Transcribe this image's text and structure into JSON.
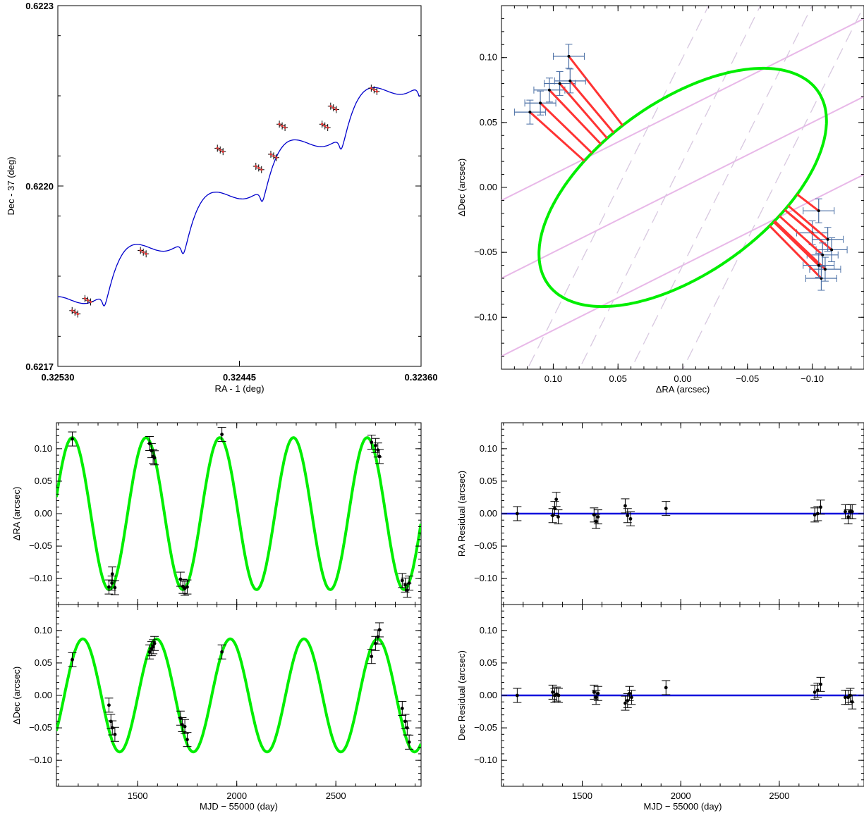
{
  "chart_data": [
    {
      "id": "sky-path",
      "type": "line",
      "xlabel": "RA - 1 (deg)",
      "ylabel": "Dec - 37 (deg)",
      "xlim": [
        0.3253,
        0.3236
      ],
      "ylim": [
        0.6217,
        0.6223
      ],
      "x_ticks": [
        "0.32530",
        "0.32445",
        "0.32360"
      ],
      "y_ticks": [
        "0.6217",
        "0.6220",
        "0.6223"
      ],
      "series": [
        {
          "style": "curve",
          "color": "#0000cc",
          "x": [
            0.3253,
            0.32521,
            0.32512,
            0.325,
            0.3249,
            0.32482,
            0.3247,
            0.32455,
            0.3244,
            0.32425,
            0.3241,
            0.32398,
            0.32388,
            0.32378,
            0.32368,
            0.3236
          ],
          "y": [
            0.62179,
            0.62184,
            0.62189,
            0.62186,
            0.62194,
            0.62188,
            0.62198,
            0.62203,
            0.62201,
            0.62207,
            0.62206,
            0.62211,
            0.6221,
            0.62216,
            0.62215,
            0.62218
          ]
        },
        {
          "style": "points",
          "color": "#000000",
          "x": [
            0.32522,
            0.32516,
            0.3249,
            0.32454,
            0.32436,
            0.32429,
            0.32425,
            0.32405,
            0.32401,
            0.32382
          ],
          "y": [
            0.62179,
            0.62181,
            0.62189,
            0.62206,
            0.62203,
            0.62205,
            0.6221,
            0.6221,
            0.62213,
            0.62216
          ]
        }
      ],
      "axis_scales": "linear"
    },
    {
      "id": "relative-orbit",
      "type": "scatter",
      "xlabel": "ΔRA (arcsec)",
      "ylabel": "ΔDec (arcsec)",
      "xlim": [
        0.14,
        -0.14
      ],
      "ylim": [
        -0.14,
        0.14
      ],
      "x_ticks": [
        "0.10",
        "0.05",
        "0.00",
        "−0.05",
        "−0.10"
      ],
      "y_ticks": [
        "0.10",
        "0.05",
        "0.00",
        "−0.05",
        "−0.10"
      ],
      "orbit_color": "#00ee00",
      "residual_color": "#ff3333",
      "errorbar_color": "#4a6fa5",
      "points": [
        {
          "x": 0.11,
          "y": 0.065
        },
        {
          "x": 0.118,
          "y": 0.058
        },
        {
          "x": 0.103,
          "y": 0.075
        },
        {
          "x": 0.095,
          "y": 0.08
        },
        {
          "x": 0.088,
          "y": 0.101
        },
        {
          "x": 0.087,
          "y": 0.082
        },
        {
          "x": -0.105,
          "y": -0.018
        },
        {
          "x": -0.1,
          "y": -0.035
        },
        {
          "x": -0.115,
          "y": -0.048
        },
        {
          "x": -0.108,
          "y": -0.052
        },
        {
          "x": -0.112,
          "y": -0.04
        },
        {
          "x": -0.11,
          "y": -0.063
        },
        {
          "x": -0.107,
          "y": -0.07
        },
        {
          "x": -0.105,
          "y": -0.06
        }
      ]
    },
    {
      "id": "dra-time",
      "type": "line",
      "xlabel": "",
      "ylabel": "ΔRA (arcsec)",
      "xlim": [
        1090,
        2930
      ],
      "ylim": [
        -0.14,
        0.14
      ],
      "x_ticks": [],
      "y_ticks": [
        "0.10",
        "0.05",
        "0.00",
        "−0.05",
        "−0.10"
      ],
      "model": {
        "amplitude": 0.117,
        "period": 372,
        "peak": 1170
      },
      "data": [
        {
          "x": 1170,
          "y": 0.115
        },
        {
          "x": 1355,
          "y": -0.113
        },
        {
          "x": 1370,
          "y": -0.107
        },
        {
          "x": 1372,
          "y": -0.093
        },
        {
          "x": 1385,
          "y": -0.114
        },
        {
          "x": 1560,
          "y": 0.108
        },
        {
          "x": 1570,
          "y": 0.097
        },
        {
          "x": 1578,
          "y": 0.088
        },
        {
          "x": 1585,
          "y": 0.086
        },
        {
          "x": 1716,
          "y": -0.101
        },
        {
          "x": 1728,
          "y": -0.112
        },
        {
          "x": 1738,
          "y": -0.115
        },
        {
          "x": 1750,
          "y": -0.113
        },
        {
          "x": 1925,
          "y": 0.122
        },
        {
          "x": 2680,
          "y": 0.11
        },
        {
          "x": 2700,
          "y": 0.105
        },
        {
          "x": 2712,
          "y": 0.098
        },
        {
          "x": 2720,
          "y": 0.088
        },
        {
          "x": 2835,
          "y": -0.103
        },
        {
          "x": 2850,
          "y": -0.11
        },
        {
          "x": 2860,
          "y": -0.118
        },
        {
          "x": 2870,
          "y": -0.107
        }
      ]
    },
    {
      "id": "ddec-time",
      "type": "line",
      "xlabel": "MJD − 55000 (day)",
      "ylabel": "ΔDec (arcsec)",
      "xlim": [
        1090,
        2930
      ],
      "ylim": [
        -0.14,
        0.14
      ],
      "x_ticks": [
        "1500",
        "2000",
        "2500"
      ],
      "y_ticks": [
        "0.10",
        "0.05",
        "0.00",
        "−0.05",
        "−0.10"
      ],
      "model": {
        "amplitude": 0.087,
        "period": 372,
        "peak": 1223
      },
      "data": [
        {
          "x": 1170,
          "y": 0.055
        },
        {
          "x": 1355,
          "y": -0.015
        },
        {
          "x": 1365,
          "y": -0.04
        },
        {
          "x": 1372,
          "y": -0.05
        },
        {
          "x": 1385,
          "y": -0.06
        },
        {
          "x": 1560,
          "y": 0.067
        },
        {
          "x": 1570,
          "y": 0.072
        },
        {
          "x": 1578,
          "y": 0.075
        },
        {
          "x": 1585,
          "y": 0.08
        },
        {
          "x": 1716,
          "y": -0.035
        },
        {
          "x": 1725,
          "y": -0.045
        },
        {
          "x": 1738,
          "y": -0.048
        },
        {
          "x": 1750,
          "y": -0.068
        },
        {
          "x": 1925,
          "y": 0.067
        },
        {
          "x": 2680,
          "y": 0.06
        },
        {
          "x": 2700,
          "y": 0.08
        },
        {
          "x": 2712,
          "y": 0.09
        },
        {
          "x": 2720,
          "y": 0.101
        },
        {
          "x": 2835,
          "y": -0.02
        },
        {
          "x": 2850,
          "y": -0.04
        },
        {
          "x": 2860,
          "y": -0.05
        },
        {
          "x": 2870,
          "y": -0.072
        }
      ]
    },
    {
      "id": "ra-residual",
      "type": "scatter",
      "xlabel": "",
      "ylabel": "RA Residual (arcsec)",
      "xlim": [
        1090,
        2930
      ],
      "ylim": [
        -0.14,
        0.14
      ],
      "x_ticks": [],
      "y_ticks": [
        "0.10",
        "0.05",
        "0.00",
        "−0.05",
        "−0.10"
      ],
      "zero_line_color": "#0000dd",
      "data": [
        {
          "x": 1170,
          "y": 0.0
        },
        {
          "x": 1350,
          "y": -0.003
        },
        {
          "x": 1360,
          "y": 0.008
        },
        {
          "x": 1368,
          "y": 0.022
        },
        {
          "x": 1378,
          "y": -0.005
        },
        {
          "x": 1560,
          "y": -0.002
        },
        {
          "x": 1570,
          "y": -0.012
        },
        {
          "x": 1580,
          "y": -0.005
        },
        {
          "x": 1718,
          "y": 0.012
        },
        {
          "x": 1730,
          "y": -0.003
        },
        {
          "x": 1745,
          "y": -0.008
        },
        {
          "x": 1925,
          "y": 0.008
        },
        {
          "x": 2680,
          "y": -0.002
        },
        {
          "x": 2695,
          "y": 0.0
        },
        {
          "x": 2710,
          "y": 0.01
        },
        {
          "x": 2835,
          "y": 0.003
        },
        {
          "x": 2850,
          "y": -0.005
        },
        {
          "x": 2860,
          "y": 0.003
        },
        {
          "x": 2870,
          "y": 0.003
        }
      ]
    },
    {
      "id": "dec-residual",
      "type": "scatter",
      "xlabel": "MJD − 55000 (day)",
      "ylabel": "Dec Residual (arcsec)",
      "xlim": [
        1090,
        2930
      ],
      "ylim": [
        -0.14,
        0.14
      ],
      "x_ticks": [
        "1500",
        "2000",
        "2500"
      ],
      "y_ticks": [
        "0.10",
        "0.05",
        "0.00",
        "−0.05",
        "−0.10"
      ],
      "zero_line_color": "#0000dd",
      "data": [
        {
          "x": 1170,
          "y": 0.0
        },
        {
          "x": 1350,
          "y": 0.005
        },
        {
          "x": 1360,
          "y": 0.0
        },
        {
          "x": 1370,
          "y": 0.002
        },
        {
          "x": 1380,
          "y": 0.0
        },
        {
          "x": 1560,
          "y": 0.005
        },
        {
          "x": 1570,
          "y": -0.003
        },
        {
          "x": 1580,
          "y": 0.003
        },
        {
          "x": 1718,
          "y": -0.012
        },
        {
          "x": 1730,
          "y": -0.008
        },
        {
          "x": 1740,
          "y": 0.003
        },
        {
          "x": 1750,
          "y": -0.003
        },
        {
          "x": 1925,
          "y": 0.012
        },
        {
          "x": 2680,
          "y": 0.005
        },
        {
          "x": 2695,
          "y": 0.008
        },
        {
          "x": 2710,
          "y": 0.017
        },
        {
          "x": 2835,
          "y": -0.003
        },
        {
          "x": 2850,
          "y": -0.003
        },
        {
          "x": 2860,
          "y": 0.0
        },
        {
          "x": 2870,
          "y": -0.01
        }
      ]
    }
  ]
}
